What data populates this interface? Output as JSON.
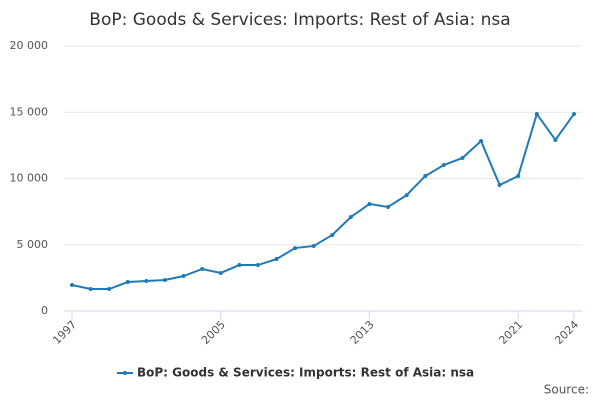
{
  "chart_data": {
    "type": "line",
    "title": "BoP: Goods & Services: Imports: Rest of Asia: nsa",
    "x": [
      1997,
      1998,
      1999,
      2000,
      2001,
      2002,
      2003,
      2004,
      2005,
      2006,
      2007,
      2008,
      2009,
      2010,
      2011,
      2012,
      2013,
      2014,
      2015,
      2016,
      2017,
      2018,
      2019,
      2020,
      2021,
      2022,
      2023,
      2024
    ],
    "series": [
      {
        "name": "BoP: Goods & Services: Imports: Rest of Asia: nsa",
        "color": "#1f7bb6",
        "values": [
          1960,
          1660,
          1660,
          2190,
          2260,
          2340,
          2640,
          3170,
          2870,
          3470,
          3470,
          3920,
          4750,
          4910,
          5740,
          7090,
          8080,
          7850,
          8750,
          10190,
          11020,
          11550,
          12830,
          9510,
          10190,
          14870,
          12910,
          14870
        ]
      }
    ],
    "xlim": [
      1997,
      2024
    ],
    "xticks": [
      1997,
      2005,
      2013,
      2021,
      2024
    ],
    "ylim": [
      0,
      20000
    ],
    "yticks": [
      0,
      {
        "value": 5000,
        "label": "5 000"
      },
      {
        "value": 10000,
        "label": "10 000"
      },
      {
        "value": 15000,
        "label": "15 000"
      },
      {
        "value": 20000,
        "label": "20 000"
      }
    ],
    "grid": true,
    "legend": "bottom",
    "source": "Source:"
  }
}
